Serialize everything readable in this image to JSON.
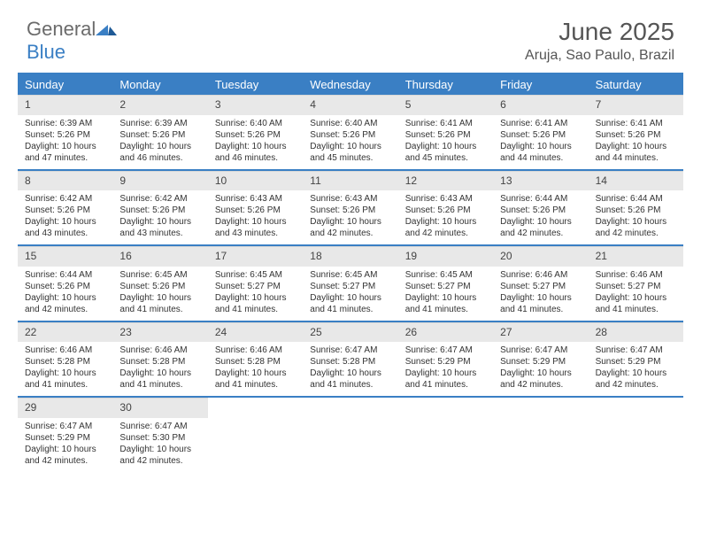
{
  "logo": {
    "word1": "General",
    "word2": "Blue",
    "word1_color": "#6b6b6b",
    "word2_color": "#3a7fc4"
  },
  "title": "June 2025",
  "location": "Aruja, Sao Paulo, Brazil",
  "colors": {
    "header_bar": "#3a7fc4",
    "daynum_bg": "#e8e8e8",
    "row_border": "#3a7fc4",
    "text": "#333333"
  },
  "weekdays": [
    "Sunday",
    "Monday",
    "Tuesday",
    "Wednesday",
    "Thursday",
    "Friday",
    "Saturday"
  ],
  "weeks": [
    [
      {
        "n": "1",
        "sr": "6:39 AM",
        "ss": "5:26 PM",
        "dl": "10 hours and 47 minutes."
      },
      {
        "n": "2",
        "sr": "6:39 AM",
        "ss": "5:26 PM",
        "dl": "10 hours and 46 minutes."
      },
      {
        "n": "3",
        "sr": "6:40 AM",
        "ss": "5:26 PM",
        "dl": "10 hours and 46 minutes."
      },
      {
        "n": "4",
        "sr": "6:40 AM",
        "ss": "5:26 PM",
        "dl": "10 hours and 45 minutes."
      },
      {
        "n": "5",
        "sr": "6:41 AM",
        "ss": "5:26 PM",
        "dl": "10 hours and 45 minutes."
      },
      {
        "n": "6",
        "sr": "6:41 AM",
        "ss": "5:26 PM",
        "dl": "10 hours and 44 minutes."
      },
      {
        "n": "7",
        "sr": "6:41 AM",
        "ss": "5:26 PM",
        "dl": "10 hours and 44 minutes."
      }
    ],
    [
      {
        "n": "8",
        "sr": "6:42 AM",
        "ss": "5:26 PM",
        "dl": "10 hours and 43 minutes."
      },
      {
        "n": "9",
        "sr": "6:42 AM",
        "ss": "5:26 PM",
        "dl": "10 hours and 43 minutes."
      },
      {
        "n": "10",
        "sr": "6:43 AM",
        "ss": "5:26 PM",
        "dl": "10 hours and 43 minutes."
      },
      {
        "n": "11",
        "sr": "6:43 AM",
        "ss": "5:26 PM",
        "dl": "10 hours and 42 minutes."
      },
      {
        "n": "12",
        "sr": "6:43 AM",
        "ss": "5:26 PM",
        "dl": "10 hours and 42 minutes."
      },
      {
        "n": "13",
        "sr": "6:44 AM",
        "ss": "5:26 PM",
        "dl": "10 hours and 42 minutes."
      },
      {
        "n": "14",
        "sr": "6:44 AM",
        "ss": "5:26 PM",
        "dl": "10 hours and 42 minutes."
      }
    ],
    [
      {
        "n": "15",
        "sr": "6:44 AM",
        "ss": "5:26 PM",
        "dl": "10 hours and 42 minutes."
      },
      {
        "n": "16",
        "sr": "6:45 AM",
        "ss": "5:26 PM",
        "dl": "10 hours and 41 minutes."
      },
      {
        "n": "17",
        "sr": "6:45 AM",
        "ss": "5:27 PM",
        "dl": "10 hours and 41 minutes."
      },
      {
        "n": "18",
        "sr": "6:45 AM",
        "ss": "5:27 PM",
        "dl": "10 hours and 41 minutes."
      },
      {
        "n": "19",
        "sr": "6:45 AM",
        "ss": "5:27 PM",
        "dl": "10 hours and 41 minutes."
      },
      {
        "n": "20",
        "sr": "6:46 AM",
        "ss": "5:27 PM",
        "dl": "10 hours and 41 minutes."
      },
      {
        "n": "21",
        "sr": "6:46 AM",
        "ss": "5:27 PM",
        "dl": "10 hours and 41 minutes."
      }
    ],
    [
      {
        "n": "22",
        "sr": "6:46 AM",
        "ss": "5:28 PM",
        "dl": "10 hours and 41 minutes."
      },
      {
        "n": "23",
        "sr": "6:46 AM",
        "ss": "5:28 PM",
        "dl": "10 hours and 41 minutes."
      },
      {
        "n": "24",
        "sr": "6:46 AM",
        "ss": "5:28 PM",
        "dl": "10 hours and 41 minutes."
      },
      {
        "n": "25",
        "sr": "6:47 AM",
        "ss": "5:28 PM",
        "dl": "10 hours and 41 minutes."
      },
      {
        "n": "26",
        "sr": "6:47 AM",
        "ss": "5:29 PM",
        "dl": "10 hours and 41 minutes."
      },
      {
        "n": "27",
        "sr": "6:47 AM",
        "ss": "5:29 PM",
        "dl": "10 hours and 42 minutes."
      },
      {
        "n": "28",
        "sr": "6:47 AM",
        "ss": "5:29 PM",
        "dl": "10 hours and 42 minutes."
      }
    ],
    [
      {
        "n": "29",
        "sr": "6:47 AM",
        "ss": "5:29 PM",
        "dl": "10 hours and 42 minutes."
      },
      {
        "n": "30",
        "sr": "6:47 AM",
        "ss": "5:30 PM",
        "dl": "10 hours and 42 minutes."
      },
      null,
      null,
      null,
      null,
      null
    ]
  ],
  "labels": {
    "sunrise": "Sunrise:",
    "sunset": "Sunset:",
    "daylight": "Daylight:"
  }
}
